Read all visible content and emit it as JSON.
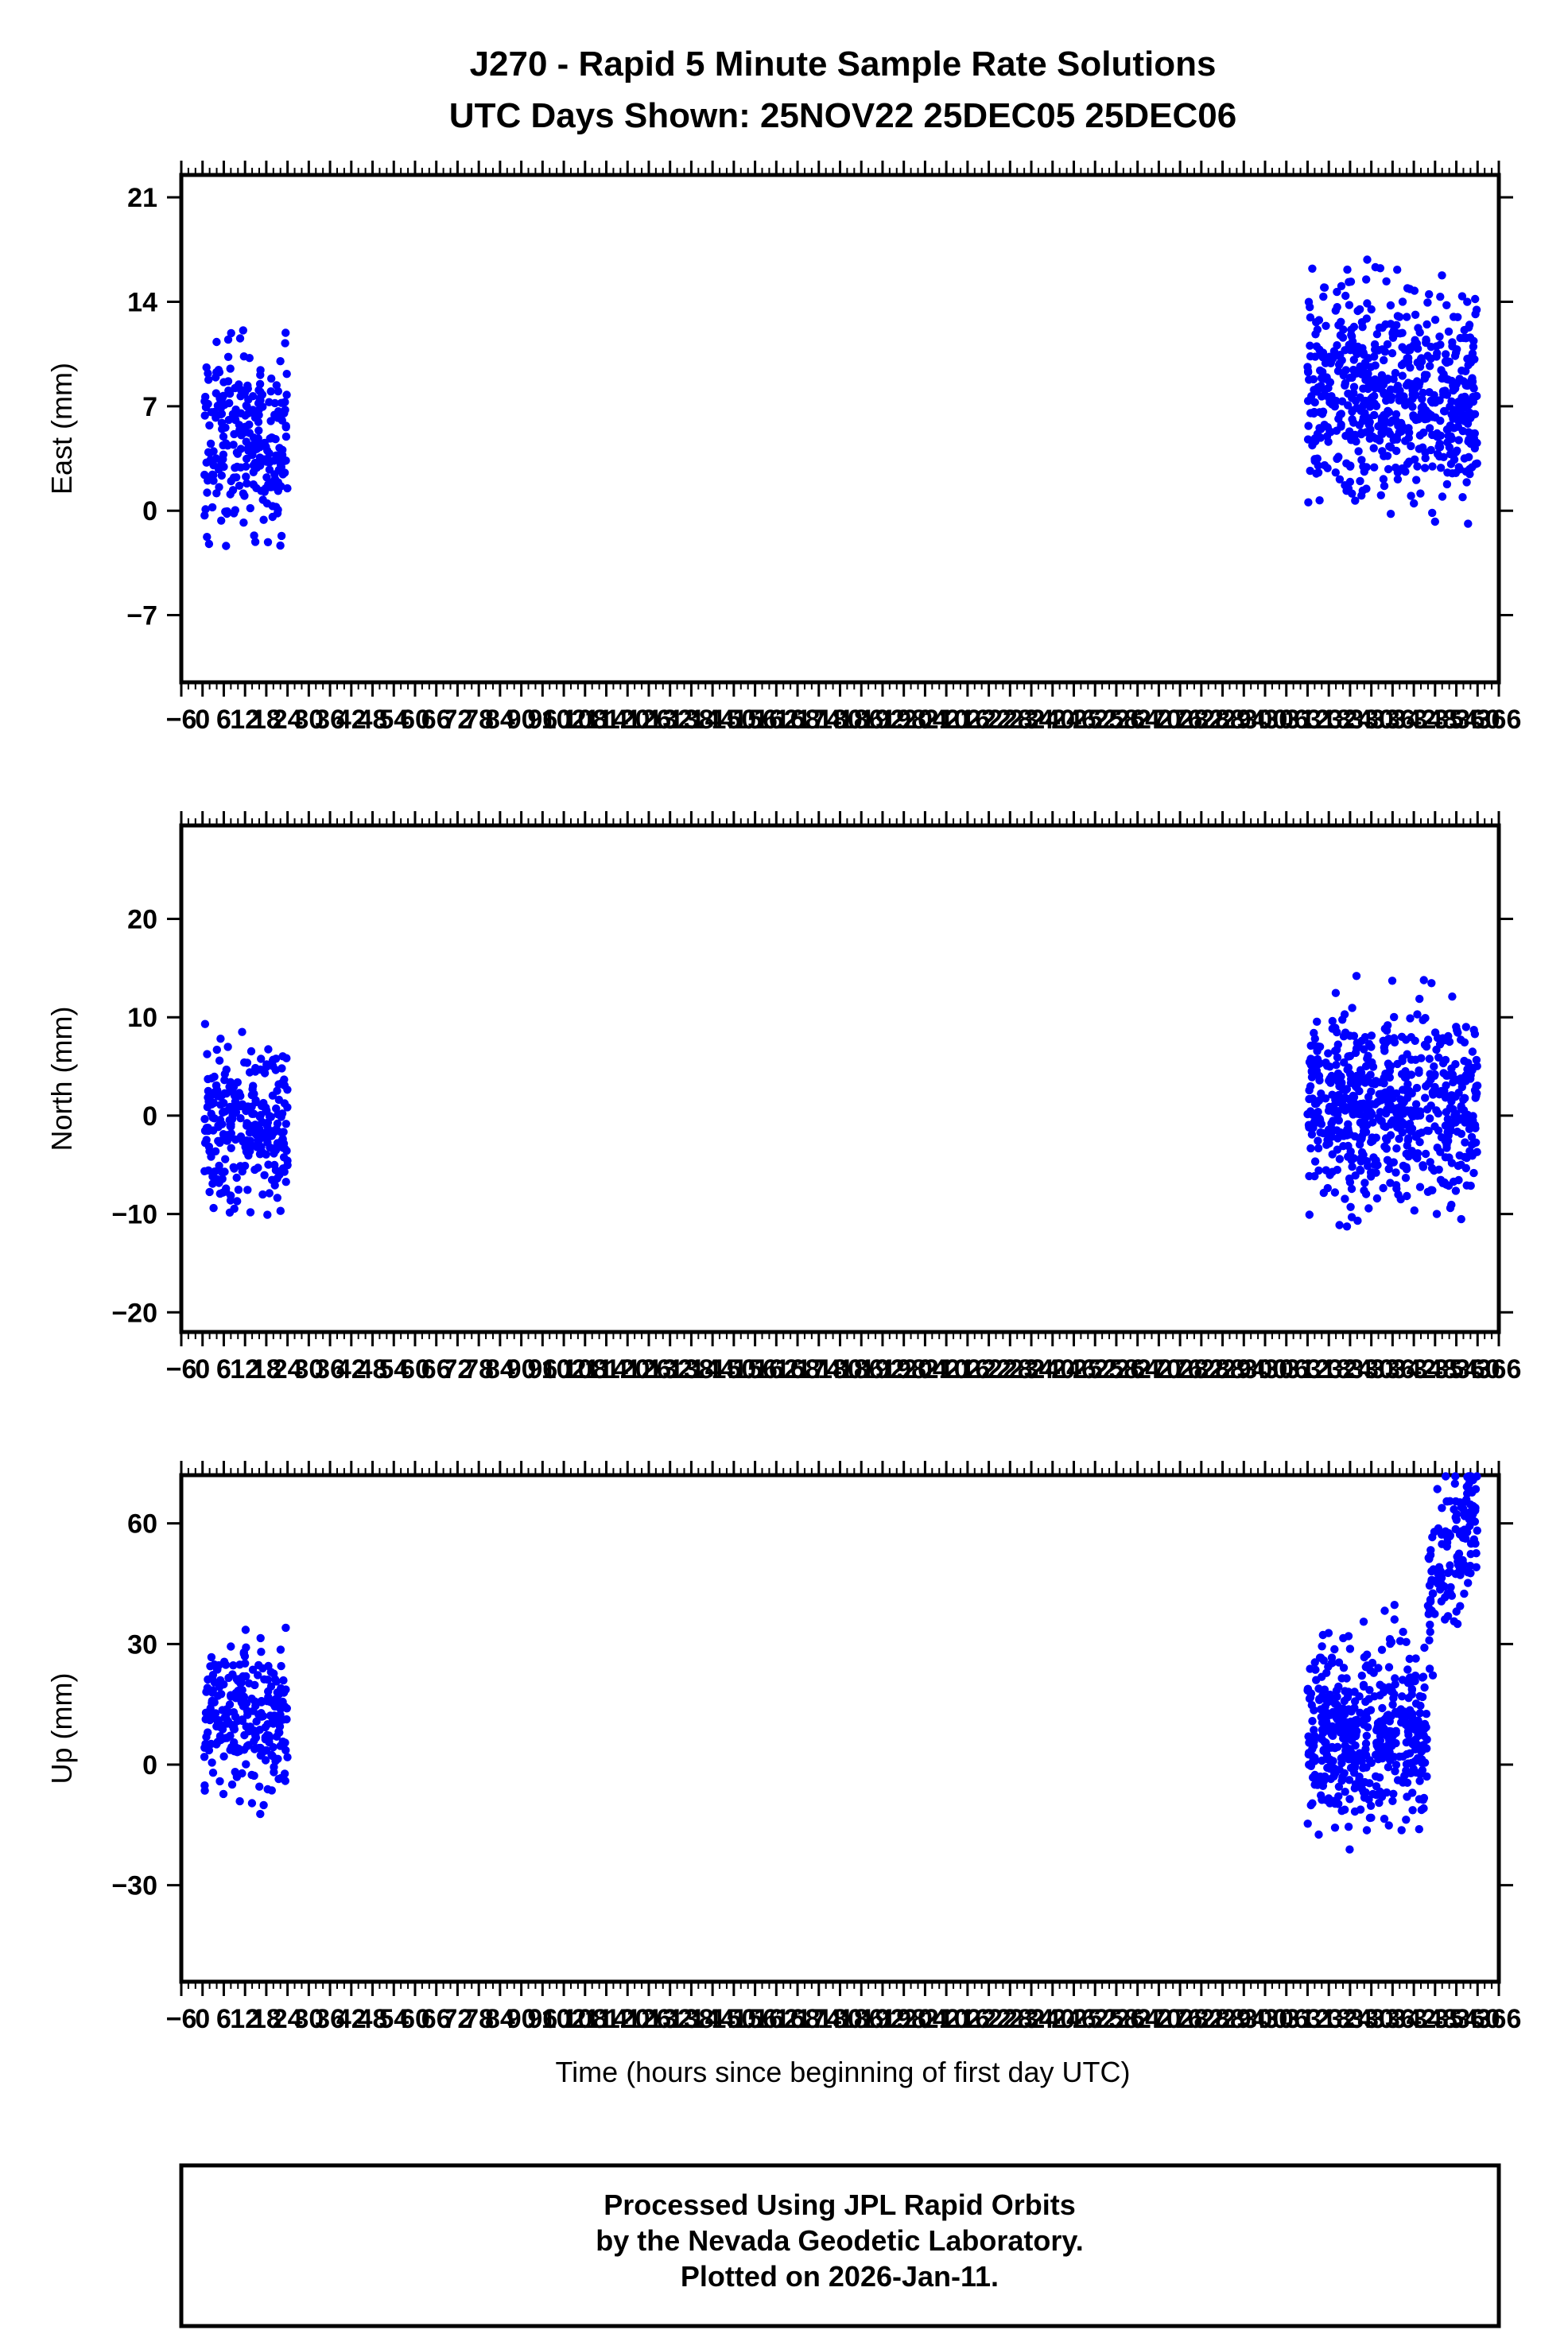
{
  "title": {
    "line1": "J270 - Rapid 5 Minute Sample Rate Solutions",
    "line2": "UTC Days Shown:  25NOV22 25DEC05 25DEC06"
  },
  "xlabel": "Time (hours since beginning of first day UTC)",
  "footer": {
    "line1": "Processed Using JPL Rapid Orbits",
    "line2": "by the Nevada Geodetic Laboratory.",
    "line3": "Plotted on 2026-Jan-11."
  },
  "colors": {
    "points": "#0000ff",
    "frame": "#000000"
  },
  "chart_data": [
    {
      "type": "scatter",
      "ylabel": "East (mm)",
      "xlim": [
        -6,
        366
      ],
      "ylim": [
        -11.5,
        22.5
      ],
      "y_ticks": [
        -7,
        0,
        7,
        14,
        21
      ],
      "y_tick_labels": [
        "−7",
        "0",
        "7",
        "14",
        "21"
      ],
      "series": [
        {
          "color": "#0000ff",
          "clusters": [
            {
              "x_range": [
                0.5,
                24
              ],
              "y_center": 4.8,
              "y_spread": 4.2,
              "count": 260,
              "slope": 0
            },
            {
              "x_range": [
                312,
                360
              ],
              "y_center": 7.8,
              "y_spread": 4.6,
              "count": 620,
              "slope": 0
            }
          ]
        }
      ]
    },
    {
      "type": "scatter",
      "ylabel": "North (mm)",
      "xlim": [
        -6,
        366
      ],
      "ylim": [
        -22,
        29.5
      ],
      "y_ticks": [
        -20,
        -10,
        0,
        10,
        20
      ],
      "y_tick_labels": [
        "−20",
        "−10",
        "0",
        "10",
        "20"
      ],
      "series": [
        {
          "color": "#0000ff",
          "clusters": [
            {
              "x_range": [
                0.5,
                24
              ],
              "y_center": -0.8,
              "y_spread": 6.0,
              "count": 260,
              "slope": 0
            },
            {
              "x_range": [
                312,
                360
              ],
              "y_center": 0.8,
              "y_spread": 6.2,
              "count": 620,
              "slope": 0
            }
          ]
        }
      ]
    },
    {
      "type": "scatter",
      "ylabel": "Up (mm)",
      "xlim": [
        -6,
        366
      ],
      "ylim": [
        -54,
        72
      ],
      "y_ticks": [
        -30,
        0,
        30,
        60
      ],
      "y_tick_labels": [
        "−30",
        "0",
        "30",
        "60"
      ],
      "series": [
        {
          "color": "#0000ff",
          "clusters": [
            {
              "x_range": [
                0.5,
                24
              ],
              "y_center": 12,
              "y_spread": 13,
              "count": 260,
              "slope": 0
            },
            {
              "x_range": [
                312,
                346
              ],
              "y_center": 8,
              "y_spread": 15,
              "count": 480,
              "slope": 0
            },
            {
              "x_range": [
                346,
                360
              ],
              "y_center": 40,
              "y_spread": 13,
              "count": 140,
              "slope": 1.8
            }
          ]
        }
      ]
    }
  ],
  "x_ticks": [
    -6,
    0,
    6,
    12,
    18,
    24,
    30,
    36,
    42,
    48,
    54,
    60,
    66,
    72,
    78,
    84,
    90,
    96,
    102,
    108,
    114,
    120,
    126,
    132,
    138,
    144,
    150,
    156,
    162,
    168,
    174,
    180,
    186,
    192,
    198,
    204,
    210,
    216,
    222,
    228,
    234,
    240,
    246,
    252,
    258,
    264,
    270,
    276,
    282,
    288,
    294,
    300,
    306,
    312,
    318,
    324,
    330,
    336,
    342,
    348,
    354,
    360,
    366
  ],
  "x_tick_labels": [
    "−6",
    "0",
    "6",
    "12",
    "18",
    "24",
    "30",
    "36",
    "42",
    "48",
    "54",
    "60",
    "66",
    "72",
    "78",
    "84",
    "90",
    "96",
    "102",
    "108",
    "114",
    "120",
    "126",
    "132",
    "138",
    "144",
    "150",
    "156",
    "162",
    "168",
    "174",
    "180",
    "186",
    "192",
    "198",
    "204",
    "210",
    "216",
    "222",
    "228",
    "234",
    "240",
    "246",
    "252",
    "258",
    "264",
    "270",
    "276",
    "282",
    "288",
    "294",
    "300",
    "306",
    "312",
    "318",
    "324",
    "330",
    "336",
    "342",
    "348",
    "354",
    "360",
    "366"
  ]
}
